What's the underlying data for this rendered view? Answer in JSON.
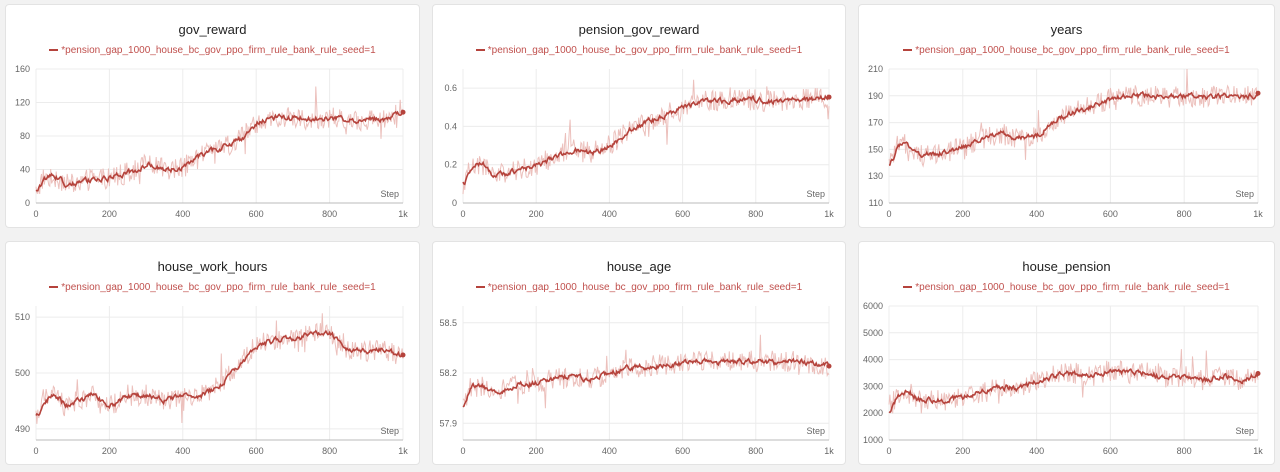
{
  "colors": {
    "line": "#b5433c",
    "raw": "#eab9b5",
    "grid": "#ececec",
    "axis": "#bbbbbb"
  },
  "chart_data": [
    {
      "type": "line",
      "title": "gov_reward",
      "legend": "*pension_gap_1000_house_bc_gov_ppo_firm_rule_bank_rule_seed=1",
      "xlabel": "Step",
      "xlim": [
        0,
        1000
      ],
      "xticks": [
        "0",
        "200",
        "400",
        "600",
        "800",
        "1k"
      ],
      "ylim": [
        0,
        160
      ],
      "yticks": [
        0,
        40,
        80,
        120,
        160
      ],
      "grid": true,
      "series": [
        {
          "name": "*pension_gap_1000_house_bc_gov_ppo_firm_rule_bank_rule_seed=1",
          "x": [
            0,
            20,
            50,
            80,
            110,
            150,
            200,
            250,
            300,
            350,
            400,
            450,
            500,
            550,
            600,
            650,
            700,
            750,
            800,
            850,
            900,
            950,
            1000
          ],
          "y": [
            14,
            30,
            32,
            22,
            24,
            28,
            30,
            36,
            46,
            40,
            42,
            58,
            66,
            74,
            96,
            102,
            102,
            100,
            102,
            98,
            100,
            101,
            110
          ]
        }
      ]
    },
    {
      "type": "line",
      "title": "pension_gov_reward",
      "legend": "*pension_gap_1000_house_bc_gov_ppo_firm_rule_bank_rule_seed=1",
      "xlabel": "Step",
      "xlim": [
        0,
        1000
      ],
      "xticks": [
        "0",
        "200",
        "400",
        "600",
        "800",
        "1k"
      ],
      "ylim": [
        0,
        0.7
      ],
      "yticks": [
        0,
        0.2,
        0.4,
        0.6
      ],
      "grid": true,
      "series": [
        {
          "name": "*pension_gap_1000_house_bc_gov_ppo_firm_rule_bank_rule_seed=1",
          "x": [
            0,
            20,
            50,
            80,
            110,
            150,
            200,
            250,
            300,
            350,
            400,
            450,
            500,
            550,
            600,
            650,
            700,
            750,
            800,
            850,
            900,
            950,
            1000
          ],
          "y": [
            0.1,
            0.18,
            0.21,
            0.14,
            0.15,
            0.17,
            0.2,
            0.24,
            0.28,
            0.26,
            0.3,
            0.38,
            0.42,
            0.46,
            0.5,
            0.54,
            0.53,
            0.54,
            0.54,
            0.53,
            0.54,
            0.54,
            0.56
          ]
        }
      ]
    },
    {
      "type": "line",
      "title": "years",
      "legend": "*pension_gap_1000_house_bc_gov_ppo_firm_rule_bank_rule_seed=1",
      "xlabel": "Step",
      "xlim": [
        0,
        1000
      ],
      "xticks": [
        "0",
        "200",
        "400",
        "600",
        "800",
        "1k"
      ],
      "ylim": [
        110,
        210
      ],
      "yticks": [
        110,
        130,
        150,
        170,
        190,
        210
      ],
      "grid": true,
      "series": [
        {
          "name": "*pension_gap_1000_house_bc_gov_ppo_firm_rule_bank_rule_seed=1",
          "x": [
            0,
            20,
            50,
            80,
            110,
            150,
            200,
            250,
            300,
            350,
            400,
            450,
            500,
            550,
            600,
            650,
            700,
            750,
            800,
            850,
            900,
            950,
            1000
          ],
          "y": [
            138,
            152,
            154,
            146,
            146,
            148,
            152,
            158,
            162,
            158,
            160,
            172,
            178,
            182,
            188,
            190,
            190,
            189,
            190,
            189,
            190,
            189,
            191
          ]
        }
      ]
    },
    {
      "type": "line",
      "title": "house_work_hours",
      "legend": "*pension_gap_1000_house_bc_gov_ppo_firm_rule_bank_rule_seed=1",
      "xlabel": "Step",
      "xlim": [
        0,
        1000
      ],
      "xticks": [
        "0",
        "200",
        "400",
        "600",
        "800",
        "1k"
      ],
      "ylim": [
        488,
        512
      ],
      "yticks": [
        490,
        500,
        510
      ],
      "grid": true,
      "series": [
        {
          "name": "*pension_gap_1000_house_bc_gov_ppo_firm_rule_bank_rule_seed=1",
          "x": [
            0,
            20,
            50,
            80,
            110,
            150,
            200,
            250,
            300,
            350,
            400,
            450,
            500,
            550,
            600,
            650,
            700,
            750,
            800,
            850,
            900,
            950,
            1000
          ],
          "y": [
            492,
            495,
            496,
            494,
            495,
            496,
            494,
            496,
            496,
            495,
            496,
            496,
            498,
            501,
            505,
            506,
            506,
            507,
            507,
            504,
            504,
            504,
            503
          ]
        }
      ]
    },
    {
      "type": "line",
      "title": "house_age",
      "legend": "*pension_gap_1000_house_bc_gov_ppo_firm_rule_bank_rule_seed=1",
      "xlabel": "Step",
      "xlim": [
        0,
        1000
      ],
      "xticks": [
        "0",
        "200",
        "400",
        "600",
        "800",
        "1k"
      ],
      "ylim": [
        57.8,
        58.6
      ],
      "yticks": [
        57.9,
        58.2,
        58.5
      ],
      "grid": true,
      "series": [
        {
          "name": "*pension_gap_1000_house_bc_gov_ppo_firm_rule_bank_rule_seed=1",
          "x": [
            0,
            20,
            50,
            80,
            110,
            150,
            200,
            250,
            300,
            350,
            400,
            450,
            500,
            550,
            600,
            650,
            700,
            750,
            800,
            850,
            900,
            950,
            1000
          ],
          "y": [
            58.0,
            58.12,
            58.12,
            58.08,
            58.1,
            58.13,
            58.14,
            58.17,
            58.18,
            58.16,
            58.2,
            58.23,
            58.24,
            58.25,
            58.26,
            58.27,
            58.26,
            58.27,
            58.27,
            58.26,
            58.27,
            58.26,
            58.24
          ]
        }
      ]
    },
    {
      "type": "line",
      "title": "house_pension",
      "legend": "*pension_gap_1000_house_bc_gov_ppo_firm_rule_bank_rule_seed=1",
      "xlabel": "Step",
      "xlim": [
        0,
        1000
      ],
      "xticks": [
        "0",
        "200",
        "400",
        "600",
        "800",
        "1k"
      ],
      "ylim": [
        1000,
        6000
      ],
      "yticks": [
        1000,
        2000,
        3000,
        4000,
        5000,
        6000
      ],
      "grid": true,
      "series": [
        {
          "name": "*pension_gap_1000_house_bc_gov_ppo_firm_rule_bank_rule_seed=1",
          "x": [
            0,
            20,
            50,
            80,
            110,
            150,
            200,
            250,
            300,
            350,
            400,
            450,
            500,
            550,
            600,
            650,
            700,
            750,
            800,
            850,
            900,
            950,
            1000
          ],
          "y": [
            2000,
            2700,
            2800,
            2500,
            2500,
            2500,
            2600,
            2800,
            3000,
            2900,
            3200,
            3400,
            3500,
            3400,
            3600,
            3500,
            3500,
            3300,
            3400,
            3200,
            3400,
            3200,
            3500
          ]
        }
      ]
    }
  ]
}
